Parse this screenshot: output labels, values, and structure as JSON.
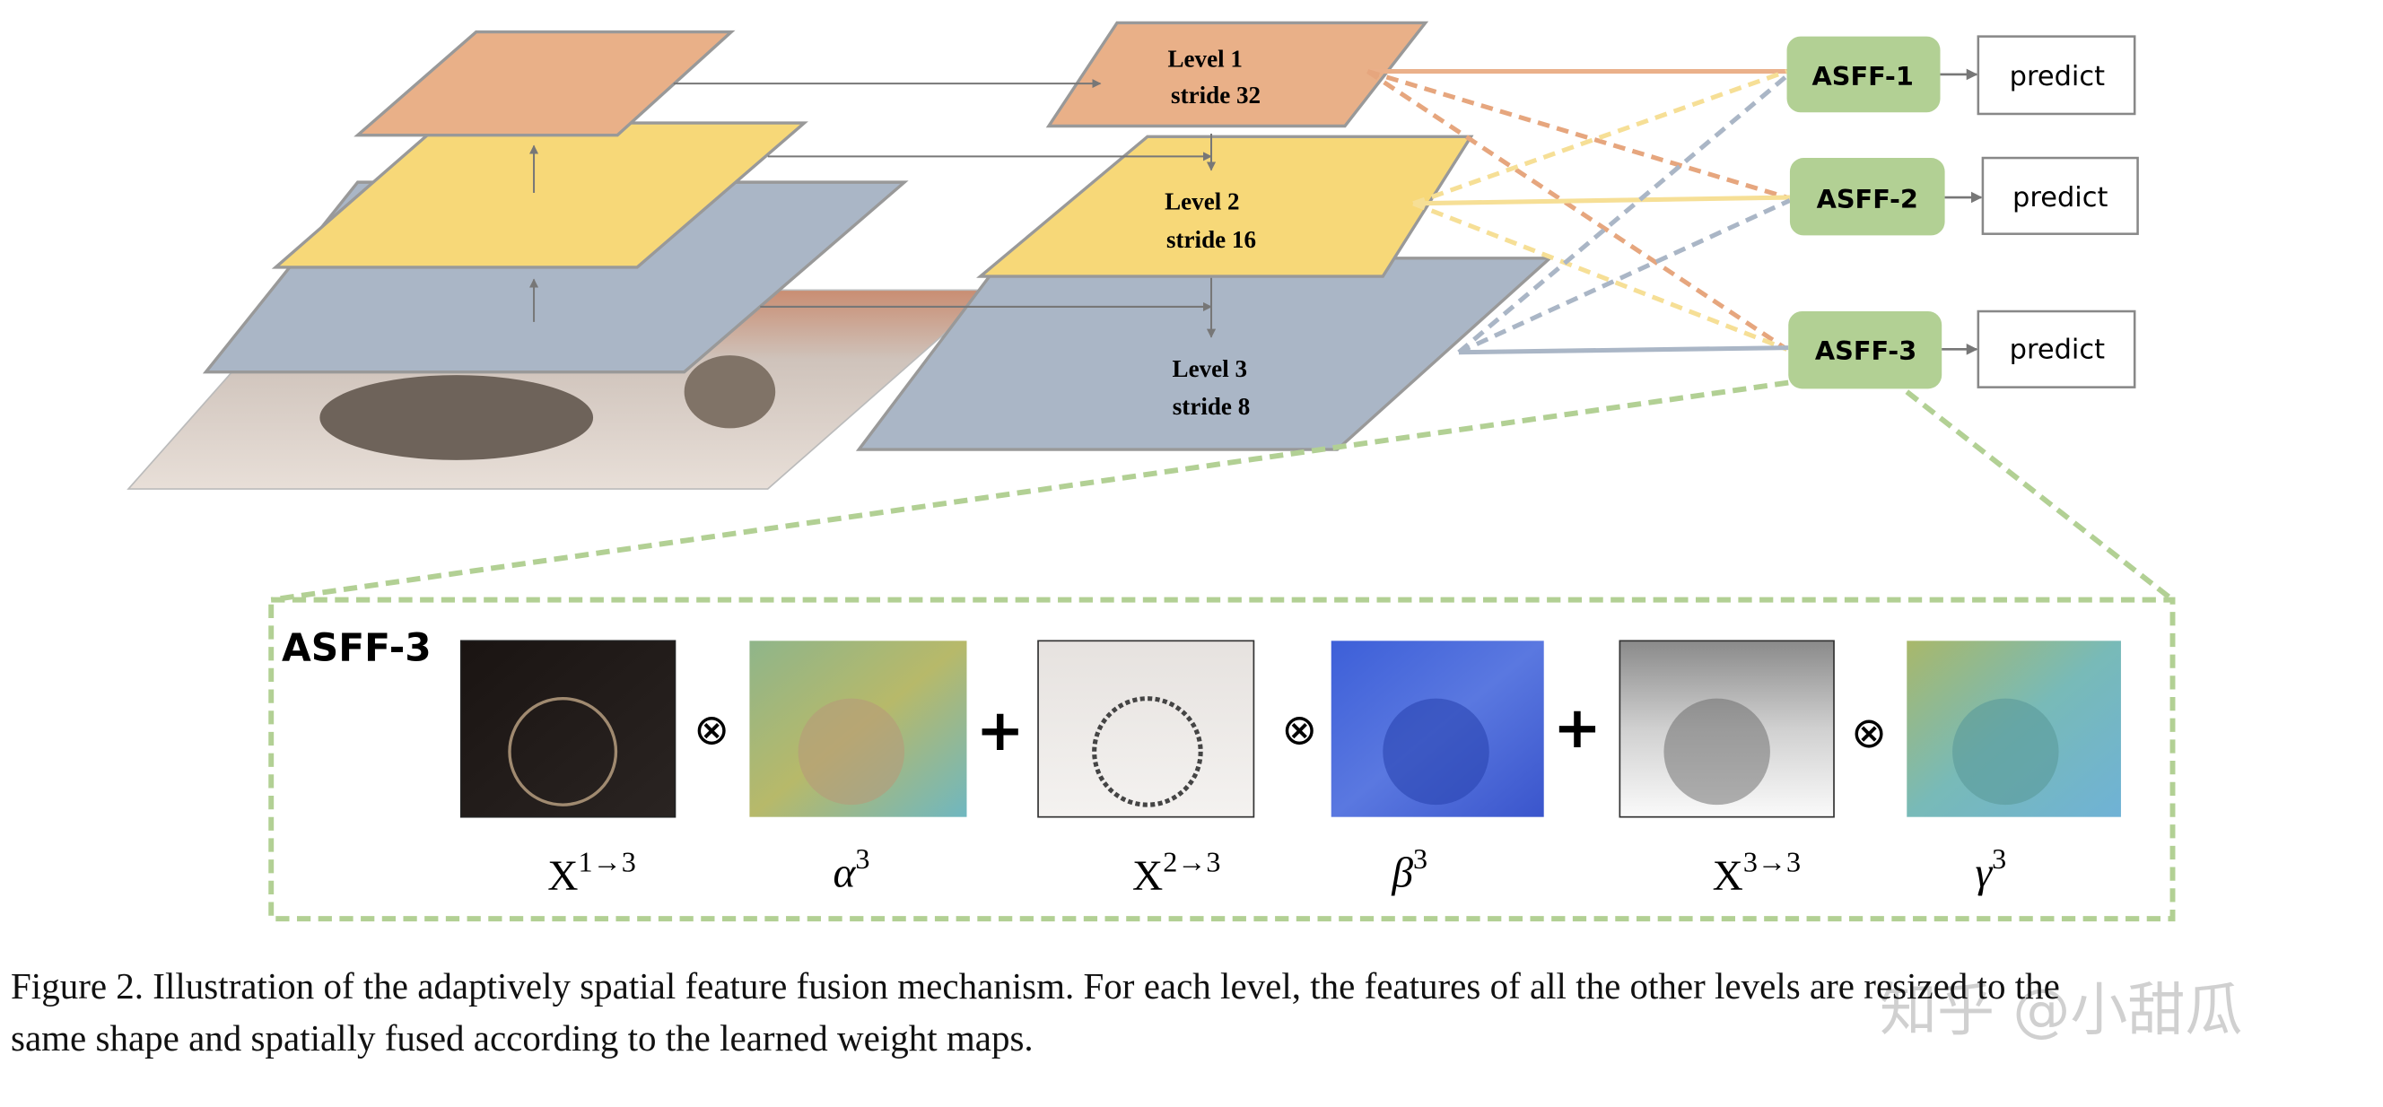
{
  "levels": [
    {
      "name": "Level 1",
      "stride": "stride 32",
      "color": "#e9b088"
    },
    {
      "name": "Level 2",
      "stride": "stride 16",
      "color": "#f7d878"
    },
    {
      "name": "Level 3",
      "stride": "stride 8",
      "color": "#aab6c6"
    }
  ],
  "asff_nodes": [
    "ASFF-1",
    "ASFF-2",
    "ASFF-3"
  ],
  "predict_label": "predict",
  "asff_color": "#b2d094",
  "detail": {
    "title": "ASFF-3",
    "terms": [
      {
        "base": "X",
        "sup": "1→3"
      },
      {
        "base": "α",
        "sup": "3"
      },
      {
        "base": "X",
        "sup": "2→3"
      },
      {
        "base": "β",
        "sup": "3"
      },
      {
        "base": "X",
        "sup": "3→3"
      },
      {
        "base": "γ",
        "sup": "3"
      }
    ],
    "otimes": "⊗",
    "plus": "+"
  },
  "caption": {
    "line1": "Figure 2. Illustration of the adaptively spatial feature fusion mechanism. For each level, the features of all the other levels are resized to the",
    "line2": "same shape and spatially fused according to the learned weight maps."
  },
  "watermark": "知乎 @小甜瓜"
}
